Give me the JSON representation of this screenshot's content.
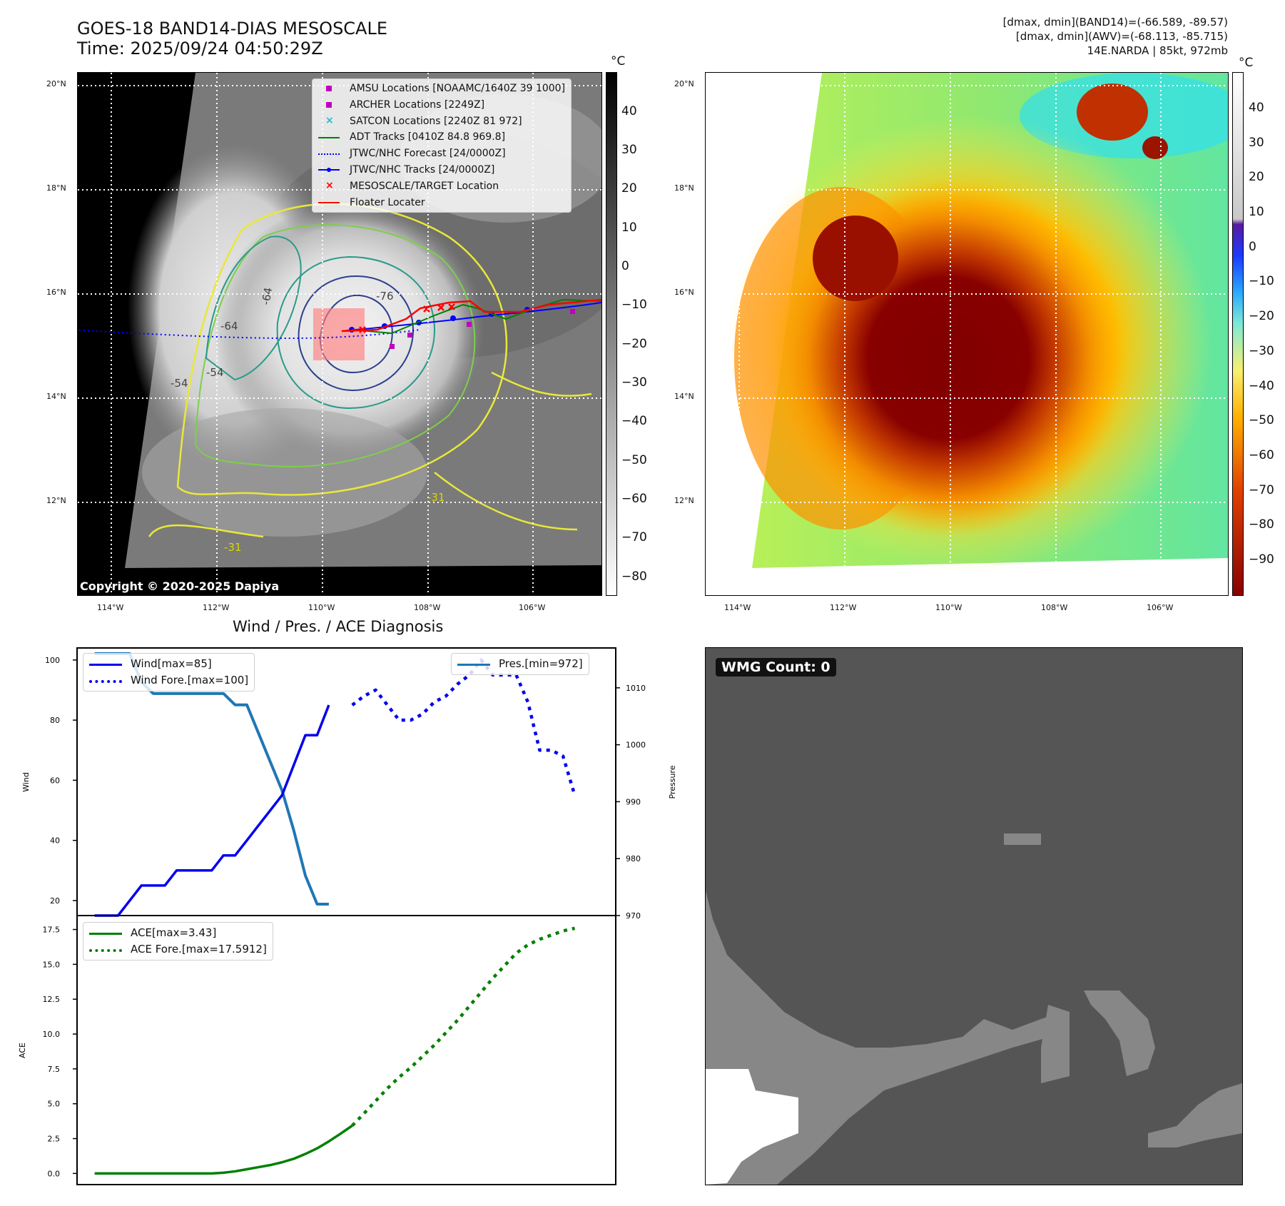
{
  "header": {
    "title_line1": "GOES-18 BAND14-DIAS MESOSCALE",
    "title_line2": "Time: 2025/09/24 04:50:29Z",
    "info_line1": "[dmax, dmin](BAND14)=(-66.589, -89.57)",
    "info_line2": "[dmax, dmin](AWV)=(-68.113, -85.715)",
    "info_line3": "14E.NARDA | 85kt, 972mb"
  },
  "map_axes": {
    "lon_labels": [
      "114°W",
      "112°W",
      "110°W",
      "108°W",
      "106°W"
    ],
    "lat_labels": [
      "20°N",
      "18°N",
      "16°N",
      "14°N",
      "12°N"
    ]
  },
  "left_colorbar": {
    "unit": "°C",
    "ticks": [
      "40",
      "30",
      "20",
      "10",
      "0",
      "−10",
      "−20",
      "−30",
      "−40",
      "−50",
      "−60",
      "−70",
      "−80"
    ]
  },
  "right_colorbar": {
    "unit": "°C",
    "ticks": [
      "40",
      "30",
      "20",
      "10",
      "0",
      "−10",
      "−20",
      "−30",
      "−40",
      "−50",
      "−60",
      "−70",
      "−80",
      "−90"
    ]
  },
  "map_legend": [
    {
      "label": "AMSU Locations [NOAAMC/1640Z 39 1000]",
      "symbol": "square",
      "color": "#c000c0"
    },
    {
      "label": "ARCHER Locations [2249Z]",
      "symbol": "square",
      "color": "#c000c0"
    },
    {
      "label": "SATCON Locations [2240Z 81 972]",
      "symbol": "x",
      "color": "#17becf"
    },
    {
      "label": "ADT Tracks [0410Z 84.8 969.8]",
      "symbol": "line",
      "color": "#008000"
    },
    {
      "label": "JTWC/NHC Forecast [24/0000Z]",
      "symbol": "dotted",
      "color": "#0000ff"
    },
    {
      "label": "JTWC/NHC Tracks [24/0000Z]",
      "symbol": "line-dot",
      "color": "#0000ff"
    },
    {
      "label": "MESOSCALE/TARGET Location",
      "symbol": "x",
      "color": "#ff0000"
    },
    {
      "label": "Floater Locater",
      "symbol": "line",
      "color": "#ff0000"
    }
  ],
  "contour_labels": [
    "-76",
    "-64",
    "-64",
    "-54",
    "-31",
    "-31",
    "-54"
  ],
  "copyright": "Copyright © 2020-2025 Dapiya",
  "diagnosis": {
    "title": "Wind / Pres. / ACE Diagnosis",
    "wind_ylabel": "Wind",
    "pressure_ylabel": "Pressure",
    "ace_ylabel": "ACE",
    "legend_wind": "Wind[max=85]",
    "legend_wind_fore": "Wind Fore.[max=100]",
    "legend_pres": "Pres.[min=972]",
    "legend_ace": "ACE[max=3.43]",
    "legend_ace_fore": "ACE Fore.[max=17.5912]"
  },
  "wmg": {
    "label": "WMG Count: 0"
  },
  "chart_data": [
    {
      "type": "line",
      "title": "Wind / Pres. / ACE Diagnosis",
      "ylabel": "Wind",
      "ylim": [
        15,
        104
      ],
      "yticks": [
        20,
        40,
        60,
        80,
        100
      ],
      "series": [
        {
          "name": "Wind[max=85]",
          "color": "#0000ee",
          "style": "solid",
          "x": [
            0,
            1,
            2,
            3,
            4,
            5,
            6,
            7,
            8,
            9,
            10,
            11,
            12,
            13,
            14,
            15,
            16,
            17,
            18,
            19,
            20,
            21,
            22
          ],
          "values": [
            15,
            15,
            15,
            20,
            25,
            25,
            25,
            30,
            30,
            30,
            30,
            35,
            35,
            40,
            45,
            50,
            55,
            65,
            75,
            75,
            85,
            null,
            null
          ]
        },
        {
          "name": "Wind Fore.[max=100]",
          "color": "#0000ee",
          "style": "dotted",
          "x": [
            22,
            23,
            24,
            25,
            26,
            27,
            28,
            29,
            30,
            31,
            32,
            33,
            34,
            35,
            36,
            37,
            38,
            39,
            40,
            41,
            42
          ],
          "values": [
            85,
            88,
            90,
            85,
            80,
            80,
            82,
            86,
            88,
            92,
            95,
            100,
            95,
            95,
            95,
            86,
            70,
            70,
            68,
            55,
            null
          ]
        }
      ]
    },
    {
      "type": "line",
      "ylabel": "Pressure",
      "ylim": [
        970,
        1017
      ],
      "yticks": [
        970,
        980,
        990,
        1000,
        1010
      ],
      "series": [
        {
          "name": "Pres.[min=972]",
          "color": "#1f77b4",
          "style": "solid",
          "x": [
            0,
            1,
            2,
            3,
            4,
            5,
            6,
            7,
            8,
            9,
            10,
            11,
            12,
            13,
            14,
            15,
            16,
            17,
            18,
            19,
            20,
            21,
            22
          ],
          "values": [
            1016,
            1016,
            1016,
            1016,
            1011,
            1009,
            1009,
            1009,
            1009,
            1009,
            1009,
            1009,
            1007,
            1007,
            1002,
            997,
            992,
            985,
            977,
            972,
            972,
            null,
            null
          ]
        }
      ]
    },
    {
      "type": "line",
      "ylabel": "ACE",
      "ylim": [
        -0.8,
        18.5
      ],
      "yticks": [
        0.0,
        2.5,
        5.0,
        7.5,
        10.0,
        12.5,
        15.0,
        17.5
      ],
      "series": [
        {
          "name": "ACE[max=3.43]",
          "color": "#008000",
          "style": "solid",
          "x": [
            0,
            1,
            2,
            3,
            4,
            5,
            6,
            7,
            8,
            9,
            10,
            11,
            12,
            13,
            14,
            15,
            16,
            17,
            18,
            19,
            20,
            21,
            22
          ],
          "values": [
            0,
            0,
            0,
            0,
            0,
            0,
            0,
            0,
            0,
            0,
            0,
            0.05,
            0.15,
            0.3,
            0.45,
            0.6,
            0.8,
            1.05,
            1.4,
            1.8,
            2.3,
            2.85,
            3.43
          ]
        },
        {
          "name": "ACE Fore.[max=17.5912]",
          "color": "#008000",
          "style": "dotted",
          "x": [
            22,
            23,
            24,
            25,
            26,
            27,
            28,
            29,
            30,
            31,
            32,
            33,
            34,
            35,
            36,
            37,
            38,
            39,
            40,
            41,
            42
          ],
          "values": [
            3.43,
            4.3,
            5.2,
            6.1,
            6.9,
            7.6,
            8.4,
            9.2,
            10.1,
            11.0,
            12.0,
            13.0,
            14.0,
            14.9,
            15.8,
            16.4,
            16.8,
            17.1,
            17.4,
            17.59,
            null
          ]
        }
      ]
    }
  ]
}
